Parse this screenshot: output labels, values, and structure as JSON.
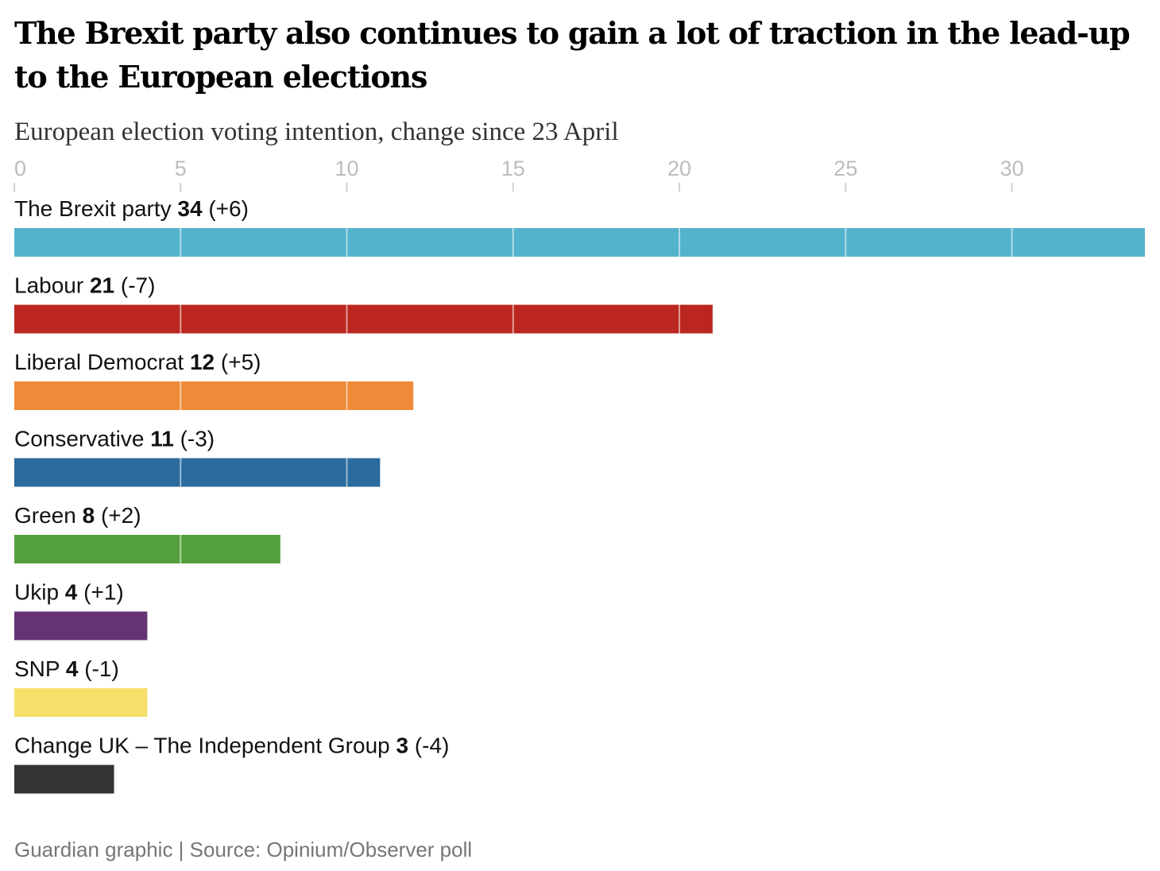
{
  "header": {
    "title": "The Brexit party also continues to gain a lot of traction in the lead-up to the European elections",
    "subtitle": "European election voting intention, change since 23 April"
  },
  "footer": {
    "source": "Guardian graphic | Source: Opinium/Observer poll"
  },
  "chart_data": {
    "type": "bar",
    "orientation": "horizontal",
    "xlim": [
      0,
      34
    ],
    "ticks": [
      0,
      5,
      10,
      15,
      20,
      25,
      30
    ],
    "grid": true,
    "categories": [
      "The Brexit party",
      "Labour",
      "Liberal Democrat",
      "Conservative",
      "Green",
      "Ukip",
      "SNP",
      "Change UK – The Independent Group"
    ],
    "values": [
      34,
      21,
      12,
      11,
      8,
      4,
      4,
      3
    ],
    "changes": [
      "(+6)",
      "(-7)",
      "(+5)",
      "(-3)",
      "(+2)",
      "(+1)",
      "(-1)",
      "(-4)"
    ],
    "colors": [
      "#52b3cb",
      "#bb2720",
      "#ee8a38",
      "#2b6b9d",
      "#55a03e",
      "#653373",
      "#f7df6b",
      "#333333"
    ]
  }
}
